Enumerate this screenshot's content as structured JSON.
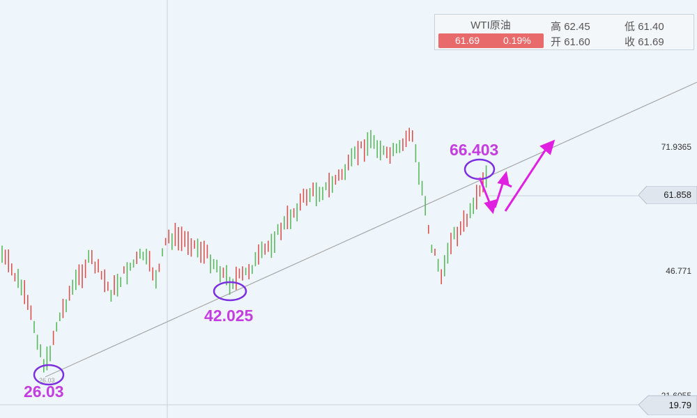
{
  "info_box": {
    "title": "WTI原油",
    "price": "61.69",
    "change": "0.19%",
    "high_label": "高",
    "high_value": "62.45",
    "open_label": "开",
    "open_value": "61.60",
    "low_label": "低",
    "low_value": "61.40",
    "close_label": "收",
    "close_value": "61.69"
  },
  "y_axis": {
    "tick_labels": [
      "71.9365",
      "46.771",
      "21.6055"
    ],
    "current_price": "61.858",
    "low_price": "19.79"
  },
  "annotations": {
    "low1": "26.03",
    "low1_small": "26.03",
    "low2": "42.025",
    "high": "66.403"
  },
  "colors": {
    "background": "#eef5fb",
    "up_candle": "#d9534f",
    "down_candle": "#5cb85c",
    "annotation_text": "#c43de0",
    "ellipse": "#7b2fe0",
    "arrow": "#e020e0",
    "trendline": "#a8a8a8",
    "price_pill": "#e96a6a"
  },
  "chart_data": {
    "type": "candlestick",
    "series_name": "WTI原油",
    "y_ticks": [
      71.9365,
      46.771,
      21.6055
    ],
    "ylim": [
      19.79,
      80
    ],
    "grid": false,
    "legend": "top-right",
    "current_price": 61.858,
    "key_points": [
      {
        "label": "26.03",
        "value": 26.03
      },
      {
        "label": "42.025",
        "value": 42.025
      },
      {
        "label": "66.403",
        "value": 66.403
      }
    ],
    "trendline": {
      "from": 26.03,
      "through": 42.025
    },
    "projection": "down-then-up arrows after 66.403"
  }
}
